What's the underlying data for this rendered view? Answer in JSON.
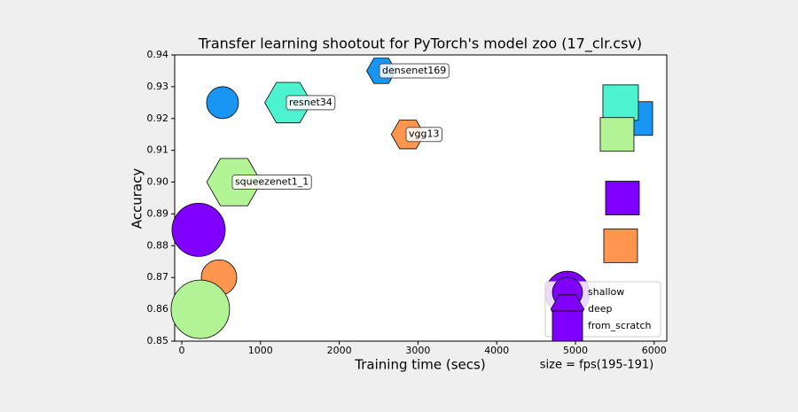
{
  "chart_data": {
    "type": "scatter",
    "title": "Transfer learning shootout for PyTorch's model zoo (17_clr.csv)",
    "x_label": "Training time (secs)",
    "y_label": "Accuracy",
    "size_note": "size = fps(195-191)",
    "xlim": [
      -90,
      6160
    ],
    "ylim": [
      0.85,
      0.94
    ],
    "xticks": [
      0,
      1000,
      2000,
      3000,
      4000,
      5000,
      6000
    ],
    "yticks": [
      0.85,
      0.86,
      0.87,
      0.88,
      0.89,
      {
        "value": 0.9,
        "label": "0.90"
      },
      0.91,
      0.92,
      0.93,
      0.94
    ],
    "legend": "lower right",
    "series": [
      {
        "name": "shallow",
        "marker": "circle",
        "color": "#8000ff",
        "x": [
          518,
          214,
          473,
          236,
          4899
        ],
        "values": [
          0.925,
          0.885,
          0.87,
          0.86,
          0.865
        ],
        "sizes": [
          324,
          900,
          400,
          1089,
          625
        ],
        "colors": [
          "#1996f3",
          "#8000ff",
          "#ff964f",
          "#b2f396",
          "#8000ff"
        ]
      },
      {
        "name": "deep",
        "marker": "hexagon",
        "color": "#8000ff",
        "x": [
          2534,
          1351,
          2872,
          664
        ],
        "values": [
          0.935,
          0.925,
          0.915,
          0.9
        ],
        "sizes": [
          225,
          576,
          289,
          784
        ],
        "colors": [
          "#1996f3",
          "#4df3ce",
          "#ff964f",
          "#b2f396"
        ],
        "labels": [
          "densenet169",
          "resnet34",
          "vgg13",
          "squeezenet1_1"
        ]
      },
      {
        "name": "from_scratch",
        "marker": "square",
        "color": "#8000ff",
        "x": [
          5766,
          5574,
          5529,
          5597,
          5574
        ],
        "values": [
          0.92,
          0.925,
          0.915,
          0.895,
          0.88
        ],
        "sizes": [
          361,
          400,
          361,
          361,
          361
        ],
        "colors": [
          "#1996f3",
          "#4df3ce",
          "#b2f396",
          "#8000ff",
          "#ff964f"
        ]
      }
    ]
  }
}
